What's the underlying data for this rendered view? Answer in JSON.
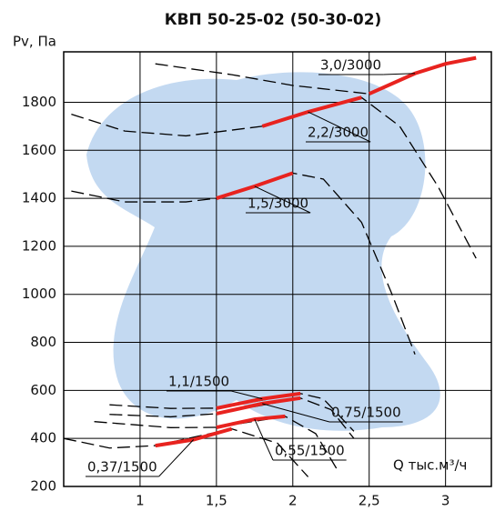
{
  "chart_data": {
    "type": "line",
    "title": "КВП 50-25-02 (50-30-02)",
    "y_label": "Pv, Па",
    "x_label": "Q тыс.м³/ч",
    "xlim": [
      0.5,
      3.3
    ],
    "xticks": [
      1,
      {
        "value": 1.5,
        "label": "1,5"
      },
      2,
      {
        "value": 2.5,
        "label": "2,5"
      },
      3
    ],
    "ylim": [
      200,
      2010
    ],
    "yticks": [
      200,
      400,
      600,
      800,
      1000,
      1200,
      1400,
      1600,
      1800
    ],
    "grid": true,
    "curve_color": "#000000",
    "series": [
      {
        "name": "3,0/3000",
        "color": "#e8231f",
        "x": [
          2.5,
          2.8,
          3.0,
          3.2
        ],
        "values": [
          1835,
          1920,
          1960,
          1985
        ],
        "curve": {
          "x": [
            1.1,
            1.6,
            2.0,
            2.5
          ],
          "values": [
            1960,
            1915,
            1870,
            1835
          ]
        }
      },
      {
        "name": "2,2/3000",
        "color": "#e8231f",
        "x": [
          1.8,
          2.1,
          2.45
        ],
        "values": [
          1700,
          1760,
          1820
        ],
        "curve": {
          "x": [
            0.55,
            0.9,
            1.3,
            1.8,
            2.45,
            2.7,
            2.95,
            3.2
          ],
          "values": [
            1750,
            1680,
            1660,
            1700,
            1820,
            1700,
            1450,
            1150
          ]
        }
      },
      {
        "name": "1,5/3000",
        "color": "#e8231f",
        "x": [
          1.5,
          1.75,
          2.0
        ],
        "values": [
          1400,
          1450,
          1505
        ],
        "curve": {
          "x": [
            0.55,
            0.9,
            1.3,
            1.5,
            2.0,
            2.2,
            2.45,
            2.65,
            2.8
          ],
          "values": [
            1430,
            1385,
            1385,
            1400,
            1505,
            1480,
            1300,
            1000,
            750
          ]
        }
      },
      {
        "name": "1,1/1500",
        "color": "#e8231f",
        "x": [
          1.5,
          1.8,
          2.05
        ],
        "values": [
          526,
          565,
          587
        ],
        "curve": {
          "x": [
            0.8,
            1.2,
            1.5,
            2.05,
            2.2,
            2.4
          ],
          "values": [
            540,
            525,
            526,
            587,
            565,
            430
          ]
        }
      },
      {
        "name": "0,75/1500",
        "color": "#e8231f",
        "x": [
          1.5,
          1.8,
          2.05
        ],
        "values": [
          503,
          545,
          568
        ],
        "curve": {
          "x": [
            0.8,
            1.2,
            1.5,
            2.05,
            2.25,
            2.4
          ],
          "values": [
            500,
            490,
            503,
            568,
            520,
            400
          ]
        }
      },
      {
        "name": "0,55/1500",
        "color": "#e8231f",
        "x": [
          1.5,
          1.75,
          1.95
        ],
        "values": [
          446,
          480,
          492
        ],
        "curve": {
          "x": [
            0.7,
            1.2,
            1.5,
            1.95,
            2.15,
            2.3
          ],
          "values": [
            470,
            445,
            446,
            492,
            420,
            260
          ]
        }
      },
      {
        "name": "0,37/1500",
        "color": "#e8231f",
        "x": [
          1.1,
          1.35,
          1.6
        ],
        "values": [
          370,
          395,
          440
        ],
        "curve": {
          "x": [
            0.5,
            0.8,
            1.1,
            1.6,
            1.9,
            2.1
          ],
          "values": [
            400,
            360,
            370,
            440,
            380,
            240
          ]
        }
      }
    ]
  }
}
